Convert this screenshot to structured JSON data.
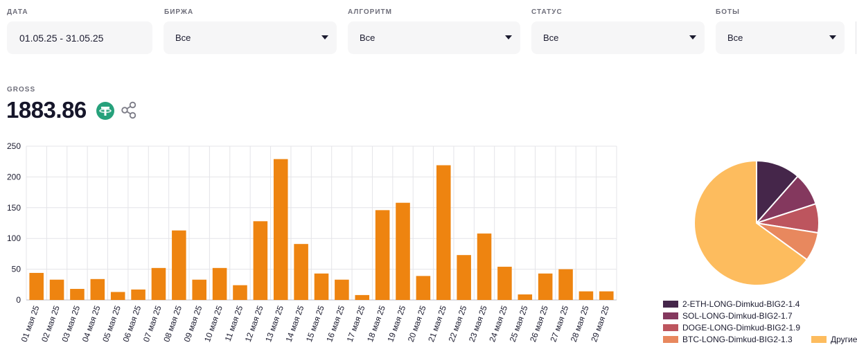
{
  "filters": [
    {
      "label": "ДАТА",
      "value": "01.05.25 - 31.05.25",
      "type": "date"
    },
    {
      "label": "БИРЖА",
      "value": "Все",
      "type": "select"
    },
    {
      "label": "АЛГОРИТМ",
      "value": "Все",
      "type": "select"
    },
    {
      "label": "СТАТУС",
      "value": "Все",
      "type": "select"
    },
    {
      "label": "БОТЫ",
      "value": "Все",
      "type": "select"
    }
  ],
  "gross": {
    "label": "GROSS",
    "value": "1883.86",
    "currency_icon": "usdt-icon",
    "share_icon": "share-icon"
  },
  "colors": {
    "bar": "#ee8410",
    "grid": "#e4e4e8",
    "pie": [
      "#45264a",
      "#84385e",
      "#bd555e",
      "#e8885e",
      "#fdbc5e"
    ]
  },
  "chart_data": [
    {
      "type": "bar",
      "categories": [
        "01 мая 25",
        "02 мая 25",
        "03 мая 25",
        "04 мая 25",
        "05 мая 25",
        "06 мая 25",
        "07 мая 25",
        "08 мая 25",
        "09 мая 25",
        "10 мая 25",
        "11 мая 25",
        "12 мая 25",
        "13 мая 25",
        "14 мая 25",
        "15 мая 25",
        "16 мая 25",
        "17 мая 25",
        "18 мая 25",
        "19 мая 25",
        "20 мая 25",
        "21 мая 25",
        "22 мая 25",
        "23 мая 25",
        "24 мая 25",
        "25 мая 25",
        "26 мая 25",
        "27 мая 25",
        "28 мая 25",
        "29 мая 25"
      ],
      "values": [
        44,
        33,
        18,
        34,
        13,
        17,
        52,
        113,
        33,
        52,
        24,
        128,
        229,
        91,
        43,
        33,
        8,
        146,
        158,
        39,
        219,
        73,
        108,
        54,
        9,
        43,
        50,
        14,
        14
      ],
      "ylim": [
        0,
        250
      ],
      "yticks": [
        0,
        50,
        100,
        150,
        200,
        250
      ],
      "grid": true,
      "title": "",
      "xlabel": "",
      "ylabel": ""
    },
    {
      "type": "pie",
      "labels": [
        "2-ETH-LONG-Dimkud-BIG2-1.4",
        "SOL-LONG-Dimkud-BIG2-1.7",
        "DOGE-LONG-Dimkud-BIG2-1.9",
        "BTC-LONG-Dimkud-BIG2-1.3",
        "Другие"
      ],
      "values": [
        11.5,
        8.5,
        7.5,
        7.5,
        65
      ],
      "legend_position": "bottom"
    }
  ]
}
